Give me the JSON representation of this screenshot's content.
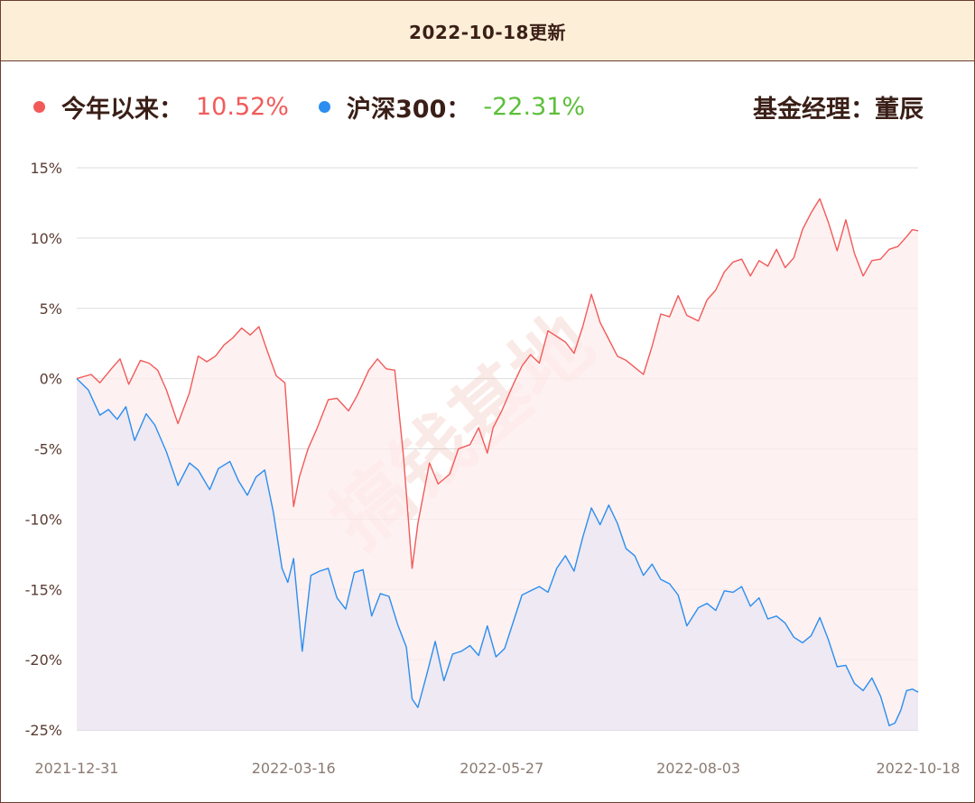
{
  "header": {
    "title": "2022-10-18更新"
  },
  "legend": {
    "fund": {
      "label": "今年以来：",
      "value": "10.52%",
      "dot_color": "#f25a5a",
      "value_color": "#f25a5a"
    },
    "index": {
      "label": "沪深300：",
      "value": "-22.31%",
      "dot_color": "#2b8ef0",
      "value_color": "#5cbf3a"
    },
    "manager": {
      "label": "基金经理：",
      "name": "董辰"
    }
  },
  "watermark": "搞钱基地",
  "chart_data": {
    "type": "area",
    "ylim": [
      -25,
      15
    ],
    "yticks": [
      15,
      10,
      5,
      0,
      -5,
      -10,
      -15,
      -20,
      -25
    ],
    "ytick_labels": [
      "15%",
      "10%",
      "5%",
      "0%",
      "-5%",
      "-10%",
      "-15%",
      "-20%",
      "-25%"
    ],
    "x_start": "2021-12-31",
    "x_end": "2022-10-18",
    "xtick_labels": [
      "2021-12-31",
      "2022-03-16",
      "2022-05-27",
      "2022-08-03",
      "2022-10-18"
    ],
    "xticks": [
      "2021-12-31",
      "2022-03-16",
      "2022-05-27",
      "2022-08-03",
      "2022-10-18"
    ],
    "grid": true,
    "series": [
      {
        "name": "今年以来",
        "color": "#f25a5a",
        "fill": "#fdecec",
        "points": [
          [
            "2021-12-31",
            0.0
          ],
          [
            "2022-01-05",
            0.3
          ],
          [
            "2022-01-08",
            -0.3
          ],
          [
            "2022-01-12",
            0.7
          ],
          [
            "2022-01-15",
            1.4
          ],
          [
            "2022-01-18",
            -0.4
          ],
          [
            "2022-01-22",
            1.3
          ],
          [
            "2022-01-25",
            1.1
          ],
          [
            "2022-01-28",
            0.6
          ],
          [
            "2022-01-31",
            -0.8
          ],
          [
            "2022-02-04",
            -3.2
          ],
          [
            "2022-02-08",
            -1.0
          ],
          [
            "2022-02-11",
            1.6
          ],
          [
            "2022-02-14",
            1.2
          ],
          [
            "2022-02-17",
            1.6
          ],
          [
            "2022-02-20",
            2.4
          ],
          [
            "2022-02-23",
            2.9
          ],
          [
            "2022-02-26",
            3.6
          ],
          [
            "2022-03-01",
            3.1
          ],
          [
            "2022-03-04",
            3.7
          ],
          [
            "2022-03-07",
            1.9
          ],
          [
            "2022-03-10",
            0.2
          ],
          [
            "2022-03-13",
            -0.3
          ],
          [
            "2022-03-16",
            -9.1
          ],
          [
            "2022-03-18",
            -7.0
          ],
          [
            "2022-03-21",
            -5.0
          ],
          [
            "2022-03-24",
            -3.6
          ],
          [
            "2022-03-28",
            -1.5
          ],
          [
            "2022-03-31",
            -1.4
          ],
          [
            "2022-04-04",
            -2.3
          ],
          [
            "2022-04-07",
            -1.2
          ],
          [
            "2022-04-11",
            0.6
          ],
          [
            "2022-04-14",
            1.4
          ],
          [
            "2022-04-17",
            0.7
          ],
          [
            "2022-04-20",
            0.6
          ],
          [
            "2022-04-23",
            -5.5
          ],
          [
            "2022-04-26",
            -13.5
          ],
          [
            "2022-04-28",
            -10.3
          ],
          [
            "2022-05-02",
            -6.0
          ],
          [
            "2022-05-05",
            -7.5
          ],
          [
            "2022-05-09",
            -6.8
          ],
          [
            "2022-05-12",
            -5.0
          ],
          [
            "2022-05-16",
            -4.7
          ],
          [
            "2022-05-19",
            -3.5
          ],
          [
            "2022-05-22",
            -5.3
          ],
          [
            "2022-05-24",
            -3.5
          ],
          [
            "2022-05-27",
            -2.3
          ],
          [
            "2022-05-31",
            -0.4
          ],
          [
            "2022-06-03",
            0.9
          ],
          [
            "2022-06-06",
            1.7
          ],
          [
            "2022-06-09",
            1.1
          ],
          [
            "2022-06-12",
            3.4
          ],
          [
            "2022-06-15",
            3.0
          ],
          [
            "2022-06-18",
            2.6
          ],
          [
            "2022-06-21",
            1.8
          ],
          [
            "2022-06-24",
            3.7
          ],
          [
            "2022-06-27",
            6.0
          ],
          [
            "2022-06-30",
            4.0
          ],
          [
            "2022-07-03",
            2.8
          ],
          [
            "2022-07-06",
            1.6
          ],
          [
            "2022-07-09",
            1.3
          ],
          [
            "2022-07-12",
            0.8
          ],
          [
            "2022-07-15",
            0.3
          ],
          [
            "2022-07-18",
            2.3
          ],
          [
            "2022-07-21",
            4.6
          ],
          [
            "2022-07-24",
            4.4
          ],
          [
            "2022-07-27",
            5.9
          ],
          [
            "2022-07-30",
            4.5
          ],
          [
            "2022-08-03",
            4.1
          ],
          [
            "2022-08-06",
            5.6
          ],
          [
            "2022-08-09",
            6.3
          ],
          [
            "2022-08-12",
            7.6
          ],
          [
            "2022-08-15",
            8.3
          ],
          [
            "2022-08-18",
            8.5
          ],
          [
            "2022-08-21",
            7.3
          ],
          [
            "2022-08-24",
            8.4
          ],
          [
            "2022-08-27",
            8.0
          ],
          [
            "2022-08-30",
            9.2
          ],
          [
            "2022-09-02",
            7.9
          ],
          [
            "2022-09-05",
            8.6
          ],
          [
            "2022-09-08",
            10.6
          ],
          [
            "2022-09-11",
            11.8
          ],
          [
            "2022-09-14",
            12.8
          ],
          [
            "2022-09-17",
            11.1
          ],
          [
            "2022-09-20",
            9.1
          ],
          [
            "2022-09-23",
            11.3
          ],
          [
            "2022-09-26",
            8.9
          ],
          [
            "2022-09-29",
            7.3
          ],
          [
            "2022-10-02",
            8.4
          ],
          [
            "2022-10-05",
            8.5
          ],
          [
            "2022-10-08",
            9.2
          ],
          [
            "2022-10-11",
            9.4
          ],
          [
            "2022-10-14",
            10.1
          ],
          [
            "2022-10-16",
            10.6
          ],
          [
            "2022-10-18",
            10.52
          ]
        ]
      },
      {
        "name": "沪深300",
        "color": "#2b8ef0",
        "fill": "#ebe8f2",
        "points": [
          [
            "2021-12-31",
            0.0
          ],
          [
            "2022-01-04",
            -0.8
          ],
          [
            "2022-01-08",
            -2.6
          ],
          [
            "2022-01-11",
            -2.2
          ],
          [
            "2022-01-14",
            -2.9
          ],
          [
            "2022-01-17",
            -2.0
          ],
          [
            "2022-01-20",
            -4.4
          ],
          [
            "2022-01-24",
            -2.5
          ],
          [
            "2022-01-27",
            -3.3
          ],
          [
            "2022-01-31",
            -5.2
          ],
          [
            "2022-02-04",
            -7.6
          ],
          [
            "2022-02-08",
            -6.0
          ],
          [
            "2022-02-11",
            -6.5
          ],
          [
            "2022-02-15",
            -7.9
          ],
          [
            "2022-02-18",
            -6.4
          ],
          [
            "2022-02-22",
            -5.9
          ],
          [
            "2022-02-25",
            -7.3
          ],
          [
            "2022-02-28",
            -8.3
          ],
          [
            "2022-03-03",
            -7.0
          ],
          [
            "2022-03-06",
            -6.5
          ],
          [
            "2022-03-09",
            -9.5
          ],
          [
            "2022-03-12",
            -13.5
          ],
          [
            "2022-03-14",
            -14.5
          ],
          [
            "2022-03-16",
            -12.8
          ],
          [
            "2022-03-19",
            -19.4
          ],
          [
            "2022-03-22",
            -14.0
          ],
          [
            "2022-03-25",
            -13.7
          ],
          [
            "2022-03-28",
            -13.5
          ],
          [
            "2022-03-31",
            -15.6
          ],
          [
            "2022-04-03",
            -16.4
          ],
          [
            "2022-04-06",
            -13.8
          ],
          [
            "2022-04-09",
            -13.6
          ],
          [
            "2022-04-12",
            -16.9
          ],
          [
            "2022-04-15",
            -15.3
          ],
          [
            "2022-04-18",
            -15.5
          ],
          [
            "2022-04-21",
            -17.5
          ],
          [
            "2022-04-24",
            -19.1
          ],
          [
            "2022-04-26",
            -22.8
          ],
          [
            "2022-04-28",
            -23.4
          ],
          [
            "2022-05-01",
            -21.1
          ],
          [
            "2022-05-04",
            -18.7
          ],
          [
            "2022-05-07",
            -21.5
          ],
          [
            "2022-05-10",
            -19.6
          ],
          [
            "2022-05-13",
            -19.4
          ],
          [
            "2022-05-16",
            -19.0
          ],
          [
            "2022-05-19",
            -19.7
          ],
          [
            "2022-05-22",
            -17.6
          ],
          [
            "2022-05-25",
            -19.8
          ],
          [
            "2022-05-28",
            -19.2
          ],
          [
            "2022-05-31",
            -17.3
          ],
          [
            "2022-06-03",
            -15.4
          ],
          [
            "2022-06-06",
            -15.1
          ],
          [
            "2022-06-09",
            -14.8
          ],
          [
            "2022-06-12",
            -15.2
          ],
          [
            "2022-06-15",
            -13.5
          ],
          [
            "2022-06-18",
            -12.6
          ],
          [
            "2022-06-21",
            -13.7
          ],
          [
            "2022-06-24",
            -11.3
          ],
          [
            "2022-06-27",
            -9.2
          ],
          [
            "2022-06-30",
            -10.4
          ],
          [
            "2022-07-03",
            -9.0
          ],
          [
            "2022-07-06",
            -10.3
          ],
          [
            "2022-07-09",
            -12.1
          ],
          [
            "2022-07-12",
            -12.6
          ],
          [
            "2022-07-15",
            -14.0
          ],
          [
            "2022-07-18",
            -13.2
          ],
          [
            "2022-07-21",
            -14.3
          ],
          [
            "2022-07-24",
            -14.6
          ],
          [
            "2022-07-27",
            -15.4
          ],
          [
            "2022-07-30",
            -17.6
          ],
          [
            "2022-08-03",
            -16.3
          ],
          [
            "2022-08-06",
            -16.0
          ],
          [
            "2022-08-09",
            -16.5
          ],
          [
            "2022-08-12",
            -15.1
          ],
          [
            "2022-08-15",
            -15.2
          ],
          [
            "2022-08-18",
            -14.8
          ],
          [
            "2022-08-21",
            -16.2
          ],
          [
            "2022-08-24",
            -15.6
          ],
          [
            "2022-08-27",
            -17.1
          ],
          [
            "2022-08-30",
            -16.9
          ],
          [
            "2022-09-02",
            -17.4
          ],
          [
            "2022-09-05",
            -18.4
          ],
          [
            "2022-09-08",
            -18.8
          ],
          [
            "2022-09-11",
            -18.3
          ],
          [
            "2022-09-14",
            -17.0
          ],
          [
            "2022-09-17",
            -18.6
          ],
          [
            "2022-09-20",
            -20.5
          ],
          [
            "2022-09-23",
            -20.4
          ],
          [
            "2022-09-26",
            -21.7
          ],
          [
            "2022-09-29",
            -22.2
          ],
          [
            "2022-10-02",
            -21.3
          ],
          [
            "2022-10-05",
            -22.6
          ],
          [
            "2022-10-08",
            -24.7
          ],
          [
            "2022-10-10",
            -24.5
          ],
          [
            "2022-10-12",
            -23.6
          ],
          [
            "2022-10-14",
            -22.2
          ],
          [
            "2022-10-16",
            -22.1
          ],
          [
            "2022-10-18",
            -22.31
          ]
        ]
      }
    ]
  }
}
